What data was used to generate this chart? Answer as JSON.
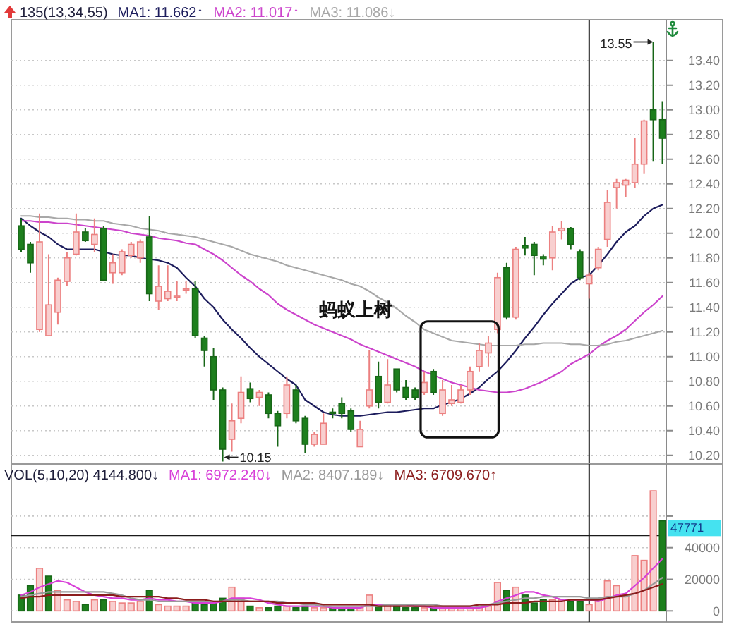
{
  "chart_data": [
    {
      "type": "candlestick",
      "title": "135(13,34,55)",
      "categories": [
        null,
        null,
        null,
        null,
        null,
        null,
        null,
        null,
        null,
        null,
        null,
        null,
        null,
        null,
        null,
        null,
        null,
        null,
        null,
        null,
        null,
        null,
        null,
        null,
        null,
        null,
        null,
        null,
        null,
        null,
        null,
        null,
        null,
        null,
        null,
        null,
        null,
        null,
        null,
        null,
        null,
        null,
        null,
        null,
        null,
        null,
        null,
        null,
        null,
        null,
        null,
        null,
        null,
        null,
        null,
        null,
        null,
        null,
        null,
        null,
        null,
        null,
        null,
        null,
        null,
        null,
        null,
        null,
        null,
        null,
        null
      ],
      "series": [
        {
          "ohlc": [
            [
              12.06,
              12.12,
              11.85,
              11.87
            ],
            [
              11.91,
              11.93,
              11.68,
              11.76
            ],
            [
              11.22,
              12.16,
              11.2,
              11.93
            ],
            [
              11.17,
              11.83,
              11.17,
              11.42
            ],
            [
              11.36,
              11.64,
              11.26,
              11.62
            ],
            [
              11.61,
              11.85,
              11.57,
              11.8
            ],
            [
              11.83,
              12.16,
              11.82,
              12.01
            ],
            [
              12.01,
              12.04,
              11.93,
              11.94
            ],
            [
              11.91,
              12.12,
              11.85,
              11.99
            ],
            [
              12.04,
              12.06,
              11.61,
              11.62
            ],
            [
              11.68,
              11.83,
              11.59,
              11.76
            ],
            [
              11.68,
              11.87,
              11.66,
              11.85
            ],
            [
              11.82,
              11.93,
              11.8,
              11.91
            ],
            [
              11.8,
              11.95,
              11.76,
              11.93
            ],
            [
              11.97,
              12.14,
              11.45,
              11.51
            ],
            [
              11.45,
              11.74,
              11.38,
              11.57
            ],
            [
              11.47,
              11.74,
              11.45,
              11.53
            ],
            [
              11.48,
              11.61,
              11.45,
              11.49
            ],
            [
              11.54,
              11.61,
              11.51,
              11.55
            ],
            [
              11.55,
              11.61,
              11.15,
              11.17
            ],
            [
              11.15,
              11.17,
              10.92,
              11.05
            ],
            [
              11.0,
              11.07,
              10.65,
              10.73
            ],
            [
              10.73,
              10.75,
              10.15,
              10.25
            ],
            [
              10.33,
              10.62,
              10.23,
              10.48
            ],
            [
              10.5,
              10.84,
              10.46,
              10.71
            ],
            [
              10.74,
              10.79,
              10.63,
              10.66
            ],
            [
              10.67,
              10.73,
              10.6,
              10.71
            ],
            [
              10.69,
              10.71,
              10.5,
              10.54
            ],
            [
              10.54,
              10.56,
              10.27,
              10.44
            ],
            [
              10.54,
              10.84,
              10.5,
              10.77
            ],
            [
              10.73,
              10.77,
              10.46,
              10.48
            ],
            [
              10.5,
              10.52,
              10.22,
              10.29
            ],
            [
              10.29,
              10.39,
              10.27,
              10.37
            ],
            [
              10.29,
              10.54,
              10.29,
              10.46
            ],
            [
              10.55,
              10.58,
              10.5,
              10.54
            ],
            [
              10.62,
              10.67,
              10.5,
              10.54
            ],
            [
              10.56,
              10.58,
              10.39,
              10.41
            ],
            [
              10.27,
              10.48,
              10.27,
              10.41
            ],
            [
              10.6,
              11.05,
              10.58,
              10.73
            ],
            [
              10.84,
              10.96,
              10.58,
              10.63
            ],
            [
              10.63,
              10.98,
              10.62,
              10.77
            ],
            [
              10.9,
              10.9,
              10.71,
              10.73
            ],
            [
              10.75,
              10.81,
              10.65,
              10.67
            ],
            [
              10.73,
              10.75,
              10.65,
              10.67
            ],
            [
              10.71,
              10.88,
              10.69,
              10.79
            ],
            [
              10.88,
              10.9,
              10.69,
              10.71
            ],
            [
              10.54,
              10.81,
              10.52,
              10.73
            ],
            [
              10.62,
              10.77,
              10.6,
              10.65
            ],
            [
              10.63,
              10.77,
              10.62,
              10.73
            ],
            [
              10.73,
              10.92,
              10.69,
              10.88
            ],
            [
              10.92,
              11.11,
              10.88,
              11.05
            ],
            [
              11.03,
              11.17,
              10.92,
              11.11
            ],
            [
              11.22,
              11.68,
              11.19,
              11.64
            ],
            [
              11.72,
              11.76,
              11.3,
              11.32
            ],
            [
              11.32,
              11.89,
              11.3,
              11.87
            ],
            [
              11.9,
              11.97,
              11.82,
              11.88
            ],
            [
              11.91,
              11.93,
              11.66,
              11.82
            ],
            [
              11.81,
              11.83,
              11.74,
              11.79
            ],
            [
              11.8,
              12.06,
              11.7,
              12.01
            ],
            [
              12.02,
              12.1,
              11.95,
              12.04
            ],
            [
              12.04,
              12.05,
              11.87,
              11.91
            ],
            [
              11.85,
              11.87,
              11.62,
              11.64
            ],
            [
              11.59,
              11.68,
              11.47,
              11.66
            ],
            [
              11.72,
              11.89,
              11.7,
              11.87
            ],
            [
              11.95,
              12.35,
              11.89,
              12.25
            ],
            [
              12.37,
              12.44,
              12.2,
              12.41
            ],
            [
              12.39,
              12.44,
              12.29,
              12.43
            ],
            [
              12.41,
              12.77,
              12.37,
              12.56
            ],
            [
              12.56,
              12.92,
              12.48,
              12.91
            ],
            [
              13.0,
              13.55,
              12.58,
              12.92
            ],
            [
              12.92,
              13.07,
              12.56,
              12.77
            ]
          ],
          "colors": [
            "#1d7f1d",
            "#1d7f1d",
            "#f8cfcf",
            "#f8cfcf",
            "#f8cfcf",
            "#f8cfcf",
            "#f8cfcf",
            "#1d7f1d",
            "#f8cfcf",
            "#1d7f1d",
            "#f8cfcf",
            "#f8cfcf",
            "#f8cfcf",
            "#f8cfcf",
            "#1d7f1d",
            "#f8cfcf",
            "#f8cfcf",
            "#f8cfcf",
            "#f8cfcf",
            "#1d7f1d",
            "#1d7f1d",
            "#1d7f1d",
            "#1d7f1d",
            "#f8cfcf",
            "#f8cfcf",
            "#1d7f1d",
            "#f8cfcf",
            "#1d7f1d",
            "#1d7f1d",
            "#f8cfcf",
            "#1d7f1d",
            "#1d7f1d",
            "#f8cfcf",
            "#f8cfcf",
            "#1d7f1d",
            "#1d7f1d",
            "#1d7f1d",
            "#f8cfcf",
            "#f8cfcf",
            "#1d7f1d",
            "#f8cfcf",
            "#1d7f1d",
            "#1d7f1d",
            "#1d7f1d",
            "#f8cfcf",
            "#1d7f1d",
            "#f8cfcf",
            "#f8cfcf",
            "#f8cfcf",
            "#f8cfcf",
            "#f8cfcf",
            "#f8cfcf",
            "#f8cfcf",
            "#1d7f1d",
            "#f8cfcf",
            "#1d7f1d",
            "#1d7f1d",
            "#1d7f1d",
            "#f8cfcf",
            "#f8cfcf",
            "#1d7f1d",
            "#1d7f1d",
            "#f8cfcf",
            "#f8cfcf",
            "#f8cfcf",
            "#f8cfcf",
            "#f8cfcf",
            "#f8cfcf",
            "#f8cfcf",
            "#1d7f1d",
            "#1d7f1d"
          ]
        },
        {
          "name": "MA1: 11.662↑",
          "type": "line",
          "color": "#1c1c5c",
          "values": [
            12.12,
            12.06,
            12.01,
            11.97,
            11.91,
            11.87,
            11.87,
            11.87,
            11.87,
            11.85,
            11.83,
            11.82,
            11.82,
            11.8,
            11.79,
            11.78,
            11.76,
            11.72,
            11.64,
            11.57,
            11.47,
            11.4,
            11.3,
            11.22,
            11.15,
            11.07,
            11.0,
            10.94,
            10.88,
            10.82,
            10.77,
            10.65,
            10.6,
            10.55,
            10.53,
            10.52,
            10.52,
            10.52,
            10.53,
            10.54,
            10.55,
            10.55,
            10.56,
            10.57,
            10.58,
            10.58,
            10.61,
            10.63,
            10.66,
            10.7,
            10.75,
            10.82,
            10.88,
            10.96,
            11.05,
            11.15,
            11.24,
            11.34,
            11.43,
            11.51,
            11.59,
            11.64,
            11.66,
            11.74,
            11.83,
            11.93,
            12.01,
            12.06,
            12.14,
            12.2,
            12.23
          ]
        },
        {
          "name": "MA2: 11.017↑",
          "type": "line",
          "color": "#cc44cc",
          "values": [
            12.1,
            12.1,
            12.09,
            12.09,
            12.08,
            12.08,
            12.07,
            12.06,
            12.05,
            12.04,
            12.03,
            12.02,
            12.0,
            11.99,
            11.98,
            11.96,
            11.95,
            11.94,
            11.92,
            11.91,
            11.87,
            11.83,
            11.78,
            11.72,
            11.66,
            11.61,
            11.55,
            11.5,
            11.43,
            11.38,
            11.34,
            11.3,
            11.26,
            11.23,
            11.2,
            11.17,
            11.14,
            11.1,
            11.07,
            11.04,
            11.01,
            10.98,
            10.95,
            10.92,
            10.88,
            10.85,
            10.82,
            10.79,
            10.77,
            10.75,
            10.73,
            10.72,
            10.71,
            10.71,
            10.72,
            10.74,
            10.77,
            10.8,
            10.84,
            10.88,
            10.94,
            10.98,
            11.02,
            11.08,
            11.13,
            11.17,
            11.22,
            11.29,
            11.36,
            11.42,
            11.49
          ]
        },
        {
          "name": "MA3: 11.086↓",
          "type": "line",
          "color": "#a8a8a8",
          "values": [
            12.14,
            12.14,
            12.13,
            12.13,
            12.12,
            12.12,
            12.11,
            12.11,
            12.1,
            12.1,
            12.08,
            12.07,
            12.06,
            12.04,
            12.03,
            12.02,
            12.0,
            11.99,
            11.98,
            11.97,
            11.95,
            11.93,
            11.91,
            11.89,
            11.86,
            11.83,
            11.81,
            11.79,
            11.77,
            11.74,
            11.72,
            11.7,
            11.68,
            11.66,
            11.64,
            11.62,
            11.59,
            11.57,
            11.53,
            11.48,
            11.44,
            11.39,
            11.33,
            11.28,
            11.22,
            11.19,
            11.16,
            11.13,
            11.12,
            11.11,
            11.1,
            11.09,
            11.09,
            11.09,
            11.09,
            11.1,
            11.1,
            11.11,
            11.11,
            11.11,
            11.1,
            11.1,
            11.09,
            11.09,
            11.1,
            11.12,
            11.13,
            11.15,
            11.17,
            11.19,
            11.21
          ]
        }
      ],
      "ylim": [
        10.13,
        13.73
      ],
      "yticks": [
        {
          "value": 10.2,
          "label": "10.20"
        },
        {
          "value": 10.4,
          "label": "10.40"
        },
        {
          "value": 10.6,
          "label": "10.60"
        },
        {
          "value": 10.8,
          "label": "10.80"
        },
        {
          "value": 11.0,
          "label": "11.00"
        },
        {
          "value": 11.2,
          "label": "11.20"
        },
        {
          "value": 11.4,
          "label": "11.40"
        },
        {
          "value": 11.6,
          "label": "11.60"
        },
        {
          "value": 11.8,
          "label": "11.80"
        },
        {
          "value": 12.0,
          "label": "12.00"
        },
        {
          "value": 12.2,
          "label": "12.20"
        },
        {
          "value": 12.4,
          "label": "12.40"
        },
        {
          "value": 12.6,
          "label": "12.60"
        },
        {
          "value": 12.8,
          "label": "12.80"
        },
        {
          "value": 13.0,
          "label": "13.00"
        },
        {
          "value": 13.2,
          "label": "13.20"
        },
        {
          "value": 13.4,
          "label": "13.40"
        }
      ],
      "annotations": [
        "蚂蚁上树",
        "13.55",
        "10.15"
      ],
      "grid": "y",
      "legend": "top left",
      "tick_labels": "y"
    },
    {
      "type": "bar",
      "title": "VOL(5,10,20) 4144.800↓",
      "categories": [
        null,
        null,
        null,
        null,
        null,
        null,
        null,
        null,
        null,
        null,
        null,
        null,
        null,
        null,
        null,
        null,
        null,
        null,
        null,
        null,
        null,
        null,
        null,
        null,
        null,
        null,
        null,
        null,
        null,
        null,
        null,
        null,
        null,
        null,
        null,
        null,
        null,
        null,
        null,
        null,
        null,
        null,
        null,
        null,
        null,
        null,
        null,
        null,
        null,
        null,
        null,
        null,
        null,
        null,
        null,
        null,
        null,
        null,
        null,
        null,
        null,
        null,
        null,
        null,
        null,
        null,
        null,
        null,
        null,
        null,
        null
      ],
      "series": [
        {
          "values": [
            10000,
            16000,
            27000,
            22000,
            13000,
            7000,
            6000,
            4000,
            7000,
            7000,
            6000,
            5000,
            5000,
            6000,
            13000,
            4000,
            3000,
            3000,
            3000,
            6000,
            4000,
            5000,
            8000,
            15000,
            8000,
            3000,
            2000,
            2000,
            3000,
            3000,
            2000,
            3000,
            2000,
            2000,
            2000,
            2000,
            2000,
            2000,
            10000,
            3000,
            4000,
            3000,
            2000,
            2000,
            2000,
            2000,
            2000,
            2000,
            2000,
            2000,
            3000,
            3000,
            18000,
            13000,
            15000,
            10000,
            5000,
            7000,
            7000,
            7000,
            6000,
            6000,
            4000,
            7000,
            19000,
            16000,
            10000,
            35000,
            32000,
            76000,
            57000
          ],
          "colors": [
            "#1d7f1d",
            "#1d7f1d",
            "#f8cfcf",
            "#1d7f1d",
            "#f8cfcf",
            "#f8cfcf",
            "#f8cfcf",
            "#1d7f1d",
            "#f8cfcf",
            "#1d7f1d",
            "#f8cfcf",
            "#f8cfcf",
            "#f8cfcf",
            "#f8cfcf",
            "#1d7f1d",
            "#f8cfcf",
            "#f8cfcf",
            "#f8cfcf",
            "#f8cfcf",
            "#1d7f1d",
            "#1d7f1d",
            "#1d7f1d",
            "#1d7f1d",
            "#f8cfcf",
            "#f8cfcf",
            "#1d7f1d",
            "#f8cfcf",
            "#1d7f1d",
            "#1d7f1d",
            "#f8cfcf",
            "#1d7f1d",
            "#1d7f1d",
            "#f8cfcf",
            "#f8cfcf",
            "#1d7f1d",
            "#1d7f1d",
            "#1d7f1d",
            "#f8cfcf",
            "#f8cfcf",
            "#1d7f1d",
            "#f8cfcf",
            "#1d7f1d",
            "#1d7f1d",
            "#1d7f1d",
            "#f8cfcf",
            "#1d7f1d",
            "#f8cfcf",
            "#f8cfcf",
            "#f8cfcf",
            "#f8cfcf",
            "#f8cfcf",
            "#f8cfcf",
            "#f8cfcf",
            "#1d7f1d",
            "#f8cfcf",
            "#1d7f1d",
            "#1d7f1d",
            "#1d7f1d",
            "#f8cfcf",
            "#f8cfcf",
            "#1d7f1d",
            "#1d7f1d",
            "#f8cfcf",
            "#f8cfcf",
            "#f8cfcf",
            "#f8cfcf",
            "#f8cfcf",
            "#f8cfcf",
            "#f8cfcf",
            "#f8cfcf",
            "#1d7f1d"
          ]
        },
        {
          "name": "MA1: 6972.240↓",
          "type": "line",
          "color": "#d83fd8",
          "values": [
            10000,
            12000,
            15000,
            17000,
            19000,
            18000,
            15000,
            12000,
            10000,
            9000,
            8000,
            8000,
            7000,
            7000,
            8000,
            7000,
            7000,
            6000,
            6000,
            5000,
            5000,
            5000,
            6000,
            8000,
            8000,
            8000,
            7000,
            5000,
            4000,
            3000,
            3000,
            3000,
            3000,
            3000,
            2000,
            2000,
            2000,
            2000,
            4000,
            4000,
            4000,
            4000,
            4000,
            3000,
            3000,
            2000,
            2000,
            2000,
            2000,
            2000,
            2000,
            3000,
            6000,
            8000,
            10000,
            12000,
            12000,
            10000,
            9000,
            7000,
            7000,
            7000,
            7000,
            6000,
            8000,
            10000,
            11000,
            16000,
            21000,
            27000,
            33000
          ]
        },
        {
          "name": "MA2: 8407.189↓",
          "type": "line",
          "color": "#9a9a9a",
          "values": [
            9000,
            10000,
            11000,
            12000,
            12000,
            12000,
            12000,
            12000,
            12000,
            12000,
            11000,
            10000,
            8000,
            7000,
            7000,
            6000,
            6000,
            6000,
            6000,
            6000,
            6000,
            6000,
            6000,
            7000,
            7000,
            6000,
            6000,
            6000,
            6000,
            5000,
            5000,
            4000,
            4000,
            3000,
            3000,
            3000,
            3000,
            3000,
            3000,
            3000,
            4000,
            4000,
            4000,
            4000,
            4000,
            4000,
            3000,
            3000,
            3000,
            3000,
            3000,
            4000,
            5000,
            6000,
            7000,
            8000,
            8000,
            9000,
            9000,
            9000,
            9000,
            9000,
            8000,
            8000,
            9000,
            9000,
            9000,
            11000,
            13000,
            17000,
            21000
          ]
        },
        {
          "name": "MA3: 6709.670↑",
          "type": "line",
          "color": "#8b1c1c",
          "values": [
            8000,
            9000,
            9000,
            10000,
            10000,
            10000,
            10000,
            10000,
            10000,
            10000,
            10000,
            9000,
            9000,
            9000,
            9000,
            9000,
            8000,
            8000,
            7000,
            7000,
            7000,
            6000,
            6000,
            6000,
            6000,
            6000,
            6000,
            6000,
            5000,
            5000,
            5000,
            5000,
            5000,
            4000,
            4000,
            4000,
            4000,
            4000,
            4000,
            3000,
            3000,
            3000,
            3000,
            3000,
            3000,
            3000,
            3000,
            3000,
            3000,
            3000,
            4000,
            4000,
            4000,
            5000,
            5000,
            5000,
            6000,
            6000,
            6000,
            6000,
            7000,
            7000,
            7000,
            7000,
            8000,
            9000,
            10000,
            11000,
            13000,
            15000,
            17000
          ]
        }
      ],
      "ylim": [
        -7000,
        93000
      ],
      "yticks": [
        0,
        20000,
        40000,
        {
          "value": 60000,
          "label": null
        }
      ],
      "ref_lines": [
        {
          "axis": "y",
          "value": 47771,
          "label": "47771"
        }
      ],
      "grid": "y",
      "legend": "top",
      "tick_labels": "y"
    }
  ]
}
